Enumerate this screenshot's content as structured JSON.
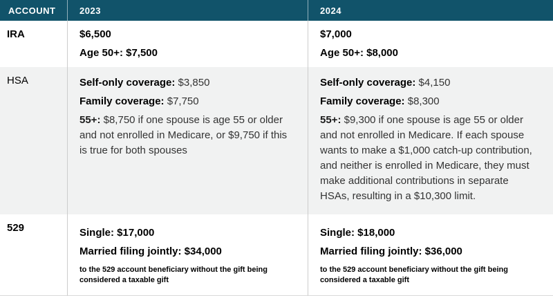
{
  "colors": {
    "header_bg": "#11536A",
    "header_text": "#FFFFFF",
    "row_alt_bg": "#F1F2F2",
    "divider": "#CCCCCC",
    "text_primary": "#000000",
    "text_secondary": "#333333"
  },
  "table": {
    "headers": [
      "ACCOUNT",
      "2023",
      "2024"
    ],
    "rows": [
      {
        "account": "IRA",
        "y2023": {
          "line1": "$6,500",
          "line2": "Age 50+: $7,500"
        },
        "y2024": {
          "line1": "$7,000",
          "line2": "Age 50+: $8,000"
        }
      },
      {
        "account": "HSA",
        "y2023": {
          "self_label": "Self-only coverage:",
          "self_value": " $3,850",
          "family_label": "Family coverage:",
          "family_value": " $7,750",
          "catchup_label": "55+:",
          "catchup_value": " $8,750 if one spouse is age 55 or older and not enrolled in Medicare, or $9,750 if this is true for both spouses"
        },
        "y2024": {
          "self_label": "Self-only coverage:",
          "self_value": " $4,150",
          "family_label": "Family coverage:",
          "family_value": " $8,300",
          "catchup_label": "55+:",
          "catchup_value": " $9,300 if one spouse is age 55 or older and not enrolled in Medicare. If each spouse wants to make a $1,000 catch-up contribution, and neither is enrolled in Medicare, they must make additional contributions in separate HSAs, resulting in a $10,300 limit."
        }
      },
      {
        "account": "529",
        "y2023": {
          "single": "Single: $17,000",
          "married": "Married filing jointly: $34,000",
          "note": "to the 529 account beneficiary without the gift being considered a taxable gift"
        },
        "y2024": {
          "single": "Single: $18,000",
          "married": "Married filing jointly: $36,000",
          "note": "to the 529 account beneficiary without the gift being considered a taxable gift"
        }
      }
    ]
  }
}
